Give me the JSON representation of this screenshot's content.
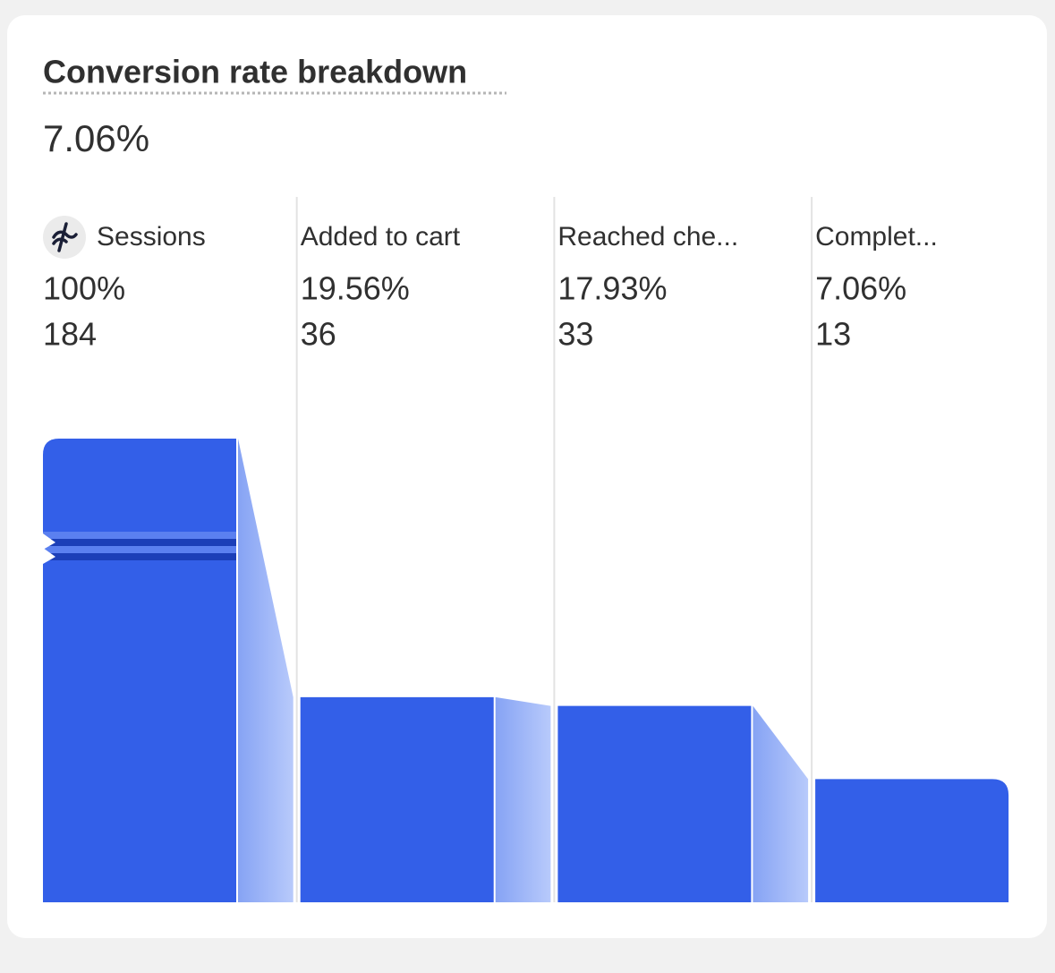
{
  "chart_data": {
    "type": "bar",
    "title": "Conversion rate breakdown",
    "summary": {
      "value": 7.06,
      "label": "7.06%"
    },
    "categories": [
      "Sessions",
      "Added to cart",
      "Reached che...",
      "Complet..."
    ],
    "values": [
      184,
      36,
      33,
      13
    ],
    "rates": [
      100,
      19.56,
      17.93,
      7.06
    ],
    "rate_labels": [
      "100%",
      "19.56%",
      "17.93%",
      "7.06%"
    ],
    "scale": "sqrt",
    "color": "#335fe8"
  }
}
